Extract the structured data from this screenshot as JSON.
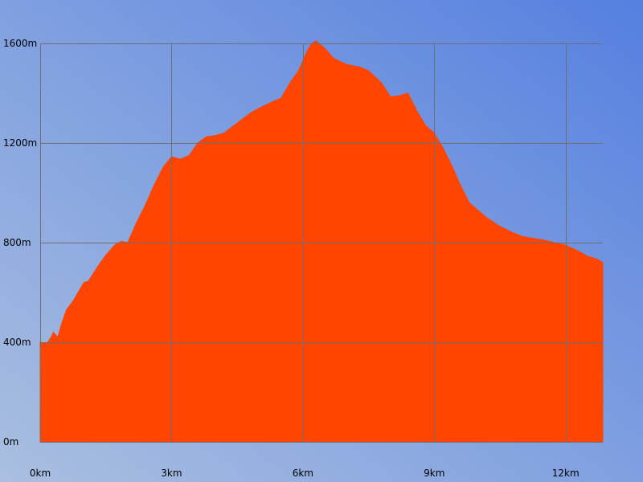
{
  "colors": {
    "area_fill": "#ff4500",
    "grid": "#6f6f6f",
    "background_start": "#aabfe0",
    "background_end": "#5580e0"
  },
  "chart_data": {
    "type": "area",
    "title": "",
    "xlabel": "",
    "ylabel": "",
    "grid": true,
    "legend": "none",
    "x_unit": "km",
    "y_unit": "m",
    "xlim": [
      0,
      12.85
    ],
    "ylim": [
      0,
      1600
    ],
    "x_ticks": [
      0,
      3,
      6,
      9,
      12
    ],
    "x_tick_labels": [
      "0km",
      "3km",
      "6km",
      "9km",
      "12km"
    ],
    "y_ticks": [
      0,
      400,
      800,
      1200,
      1600
    ],
    "y_tick_labels": [
      "0m",
      "400m",
      "800m",
      "1200m",
      "1600m"
    ],
    "series": [
      {
        "x": [
          0,
          0.15,
          0.25,
          0.3,
          0.4,
          0.5,
          0.6,
          0.75,
          0.9,
          1.0,
          1.1,
          1.3,
          1.5,
          1.7,
          1.85,
          2.0,
          2.2,
          2.4,
          2.6,
          2.8,
          3.0,
          3.2,
          3.4,
          3.6,
          3.8,
          4.0,
          4.2,
          4.5,
          4.8,
          5.0,
          5.3,
          5.5,
          5.7,
          5.9,
          6.0,
          6.1,
          6.2,
          6.3,
          6.5,
          6.7,
          7.0,
          7.3,
          7.5,
          7.8,
          8.0,
          8.2,
          8.4,
          8.6,
          8.8,
          9.0,
          9.2,
          9.4,
          9.6,
          9.8,
          10.0,
          10.2,
          10.5,
          10.8,
          11.0,
          11.5,
          12.0,
          12.3,
          12.5,
          12.7,
          12.85
        ],
        "y": [
          400,
          395,
          420,
          440,
          420,
          480,
          530,
          565,
          610,
          640,
          645,
          700,
          750,
          790,
          805,
          800,
          880,
          950,
          1030,
          1100,
          1145,
          1135,
          1150,
          1200,
          1225,
          1230,
          1240,
          1280,
          1320,
          1340,
          1365,
          1380,
          1440,
          1490,
          1530,
          1570,
          1600,
          1610,
          1580,
          1540,
          1515,
          1505,
          1490,
          1440,
          1385,
          1390,
          1400,
          1330,
          1270,
          1240,
          1180,
          1110,
          1030,
          960,
          930,
          900,
          865,
          840,
          825,
          810,
          790,
          765,
          745,
          735,
          720
        ]
      }
    ]
  }
}
